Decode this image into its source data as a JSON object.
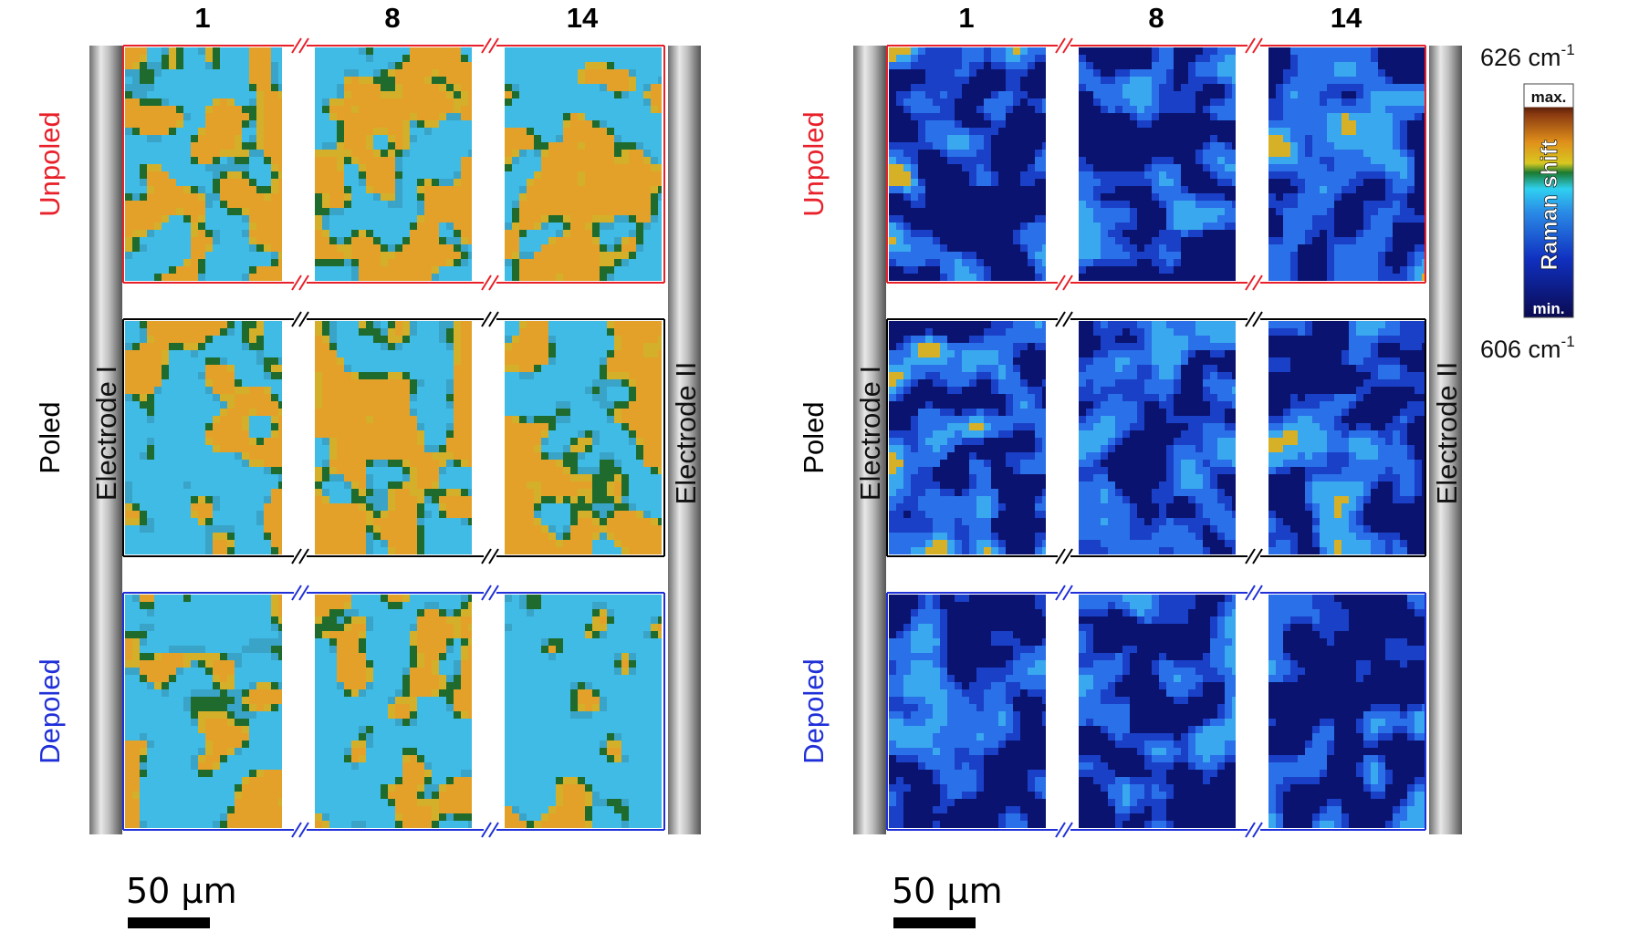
{
  "column_labels": [
    "1",
    "8",
    "14"
  ],
  "row_labels": [
    {
      "text": "Unpoled",
      "color": "#e8202a"
    },
    {
      "text": "Poled",
      "color": "#000000"
    },
    {
      "text": "Depoled",
      "color": "#2030d8"
    }
  ],
  "electrodes": {
    "left": "Electrode I",
    "right": "Electrode II"
  },
  "scale_bar": {
    "label": "50 µm"
  },
  "colorbar": {
    "top_label": "626 cm",
    "bottom_label": "606 cm",
    "unit_exponent": "-1",
    "max_label": "max.",
    "min_label": "min.",
    "title": "Raman shift"
  },
  "panels": [
    {
      "name": "left",
      "palette": "full",
      "density": [
        [
          0.48,
          0.58,
          0.5
        ],
        [
          0.33,
          0.6,
          0.55
        ],
        [
          0.3,
          0.38,
          0.12
        ]
      ]
    },
    {
      "name": "right",
      "palette": "blue",
      "density": [
        [
          0.02,
          0.0,
          0.02
        ],
        [
          0.03,
          0.0,
          0.02
        ],
        [
          0.0,
          0.0,
          0.0
        ]
      ]
    }
  ],
  "colors": {
    "unpoled_frame": "#e8202a",
    "poled_frame": "#000000",
    "depoled_frame": "#2030d8"
  }
}
